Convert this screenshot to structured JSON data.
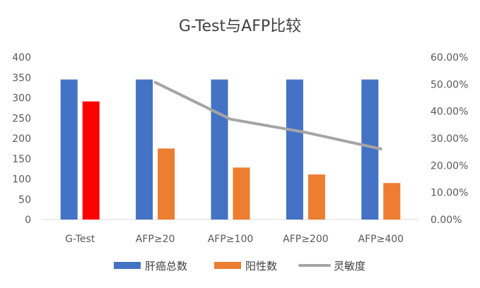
{
  "chart_data": {
    "type": "bar",
    "title": "G-Test与AFP比较",
    "categories": [
      "G-Test",
      "AFP≥20",
      "AFP≥100",
      "AFP≥200",
      "AFP≥400"
    ],
    "series": [
      {
        "name": "肝癌总数",
        "type": "bar",
        "axis": "left",
        "color": "#4472C4",
        "values": [
          345,
          345,
          345,
          345,
          345
        ]
      },
      {
        "name": "阳性数",
        "type": "bar",
        "axis": "left",
        "color": "#ED7D31",
        "point_colors": [
          "#FF0000",
          null,
          null,
          null,
          null
        ],
        "values": [
          291,
          175,
          128,
          111,
          90
        ]
      },
      {
        "name": "灵敏度",
        "type": "line",
        "axis": "right",
        "color": "#A5A5A5",
        "values": [
          null,
          0.507,
          0.371,
          0.322,
          0.261
        ]
      }
    ],
    "y_left": {
      "min": 0,
      "max": 400,
      "step": 50,
      "ticks": [
        "0",
        "50",
        "100",
        "150",
        "200",
        "250",
        "300",
        "350",
        "400"
      ]
    },
    "y_right": {
      "min": 0,
      "max": 0.6,
      "step": 0.1,
      "ticks": [
        "0.00%",
        "10.00%",
        "20.00%",
        "30.00%",
        "40.00%",
        "50.00%",
        "60.00%"
      ]
    },
    "grid": false,
    "legend_position": "bottom"
  }
}
